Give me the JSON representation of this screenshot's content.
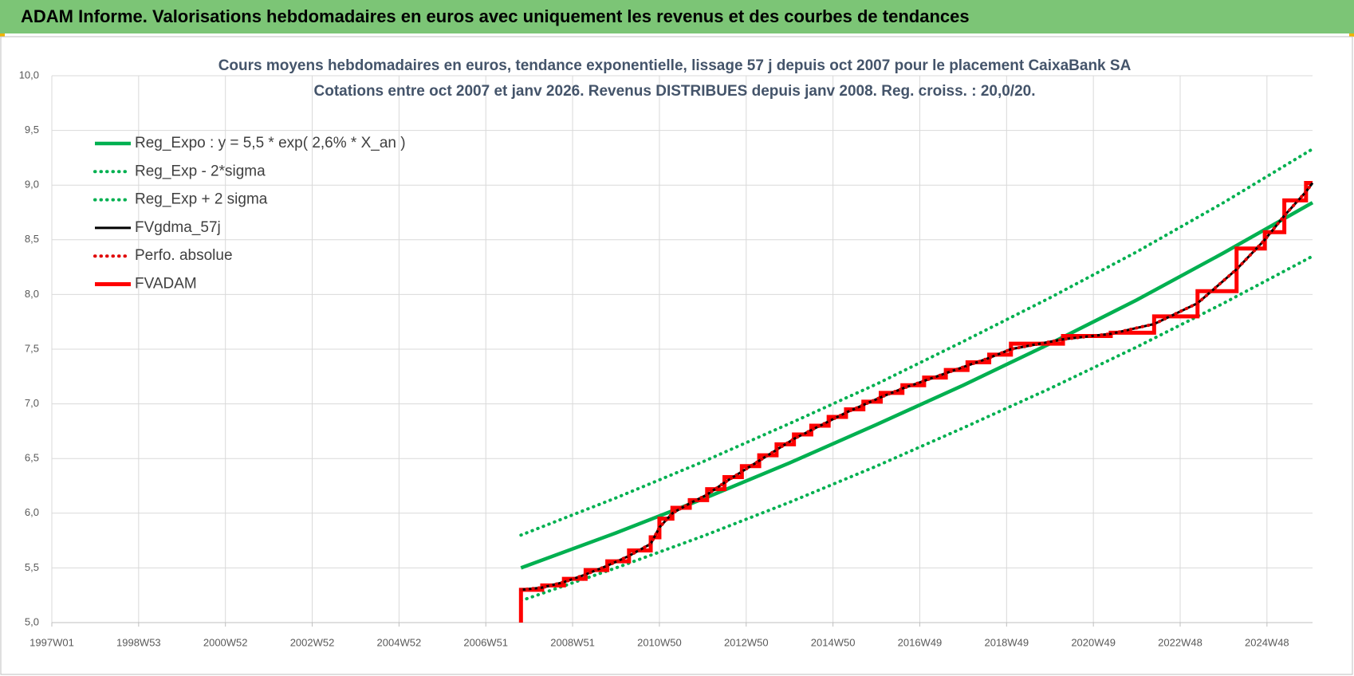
{
  "chart_data": {
    "type": "line",
    "title": "ADAM Informe. Valorisations hebdomadaires en euros avec uniquement les revenus et des courbes de tendances",
    "subtitle": [
      "Cours moyens hebdomadaires en euros, tendance exponentielle, lissage 57 j depuis oct 2007 pour le placement CaixaBank SA",
      "Cotations entre oct 2007 et janv 2026. Revenus DISTRIBUES depuis janv 2008. Reg. croiss. : 20,0/20."
    ],
    "xlim": [
      1997,
      2026.05
    ],
    "xticks": [
      {
        "value": 1997,
        "label": "1997W01"
      },
      {
        "value": 1999,
        "label": "1998W53"
      },
      {
        "value": 2001,
        "label": "2000W52"
      },
      {
        "value": 2003,
        "label": "2002W52"
      },
      {
        "value": 2005,
        "label": "2004W52"
      },
      {
        "value": 2007,
        "label": "2006W51"
      },
      {
        "value": 2009,
        "label": "2008W51"
      },
      {
        "value": 2011,
        "label": "2010W50"
      },
      {
        "value": 2013,
        "label": "2012W50"
      },
      {
        "value": 2015,
        "label": "2014W50"
      },
      {
        "value": 2017,
        "label": "2016W49"
      },
      {
        "value": 2019,
        "label": "2018W49"
      },
      {
        "value": 2021,
        "label": "2020W49"
      },
      {
        "value": 2023,
        "label": "2022W48"
      },
      {
        "value": 2025,
        "label": "2024W48"
      }
    ],
    "ylim": [
      5,
      10
    ],
    "yticks": [
      {
        "value": 5,
        "label": "5,0"
      },
      {
        "value": 5.5,
        "label": "5,5"
      },
      {
        "value": 6,
        "label": "6,0"
      },
      {
        "value": 6.5,
        "label": "6,5"
      },
      {
        "value": 7,
        "label": "7,0"
      },
      {
        "value": 7.5,
        "label": "7,5"
      },
      {
        "value": 8,
        "label": "8,0"
      },
      {
        "value": 8.5,
        "label": "8,5"
      },
      {
        "value": 9,
        "label": "9,0"
      },
      {
        "value": 9.5,
        "label": "9,5"
      },
      {
        "value": 10,
        "label": "10,0"
      }
    ],
    "grid": true,
    "legend": "upper-left",
    "series": [
      {
        "name": "Reg_Expo : y = 5,5 * exp( 2,6% *  X_an )",
        "color": "#00b050",
        "style": "solid",
        "x": [
          2007.81,
          2010,
          2012,
          2014,
          2016,
          2018,
          2020,
          2022,
          2024,
          2026.05
        ],
        "values": [
          5.5,
          5.82,
          6.13,
          6.46,
          6.81,
          7.17,
          7.55,
          7.95,
          8.38,
          8.84
        ]
      },
      {
        "name": "Reg_Exp - 2*sigma",
        "color": "#00b050",
        "style": "dotted",
        "x": [
          2007.81,
          2010,
          2012,
          2014,
          2016,
          2018,
          2020,
          2022,
          2024,
          2026.05
        ],
        "values": [
          5.2,
          5.5,
          5.79,
          6.1,
          6.43,
          6.78,
          7.14,
          7.52,
          7.92,
          8.35
        ]
      },
      {
        "name": "Reg_Exp + 2 sigma",
        "color": "#00b050",
        "style": "dotted",
        "x": [
          2007.81,
          2010,
          2012,
          2014,
          2016,
          2018,
          2020,
          2022,
          2024,
          2026.05
        ],
        "values": [
          5.8,
          6.14,
          6.47,
          6.82,
          7.18,
          7.57,
          7.97,
          8.39,
          8.84,
          9.33
        ]
      },
      {
        "name": "FVgdma_57j",
        "color": "#000000",
        "style": "solid",
        "x": [
          2007.81,
          2008.3,
          2008.8,
          2009.3,
          2009.8,
          2010.3,
          2010.8,
          2011.0,
          2011.3,
          2011.7,
          2012.1,
          2012.5,
          2012.9,
          2013.3,
          2013.7,
          2014.1,
          2014.5,
          2014.9,
          2015.3,
          2015.7,
          2016.1,
          2016.6,
          2017.1,
          2017.6,
          2018.1,
          2018.6,
          2019.1,
          2020.3,
          2021.4,
          2022.4,
          2023.4,
          2024.3,
          2024.95,
          2025.4,
          2025.9,
          2026.05
        ],
        "values": [
          5.3,
          5.32,
          5.37,
          5.44,
          5.52,
          5.61,
          5.72,
          5.87,
          6.0,
          6.09,
          6.17,
          6.28,
          6.38,
          6.48,
          6.58,
          6.68,
          6.76,
          6.84,
          6.92,
          6.99,
          7.06,
          7.14,
          7.21,
          7.28,
          7.35,
          7.42,
          7.5,
          7.59,
          7.64,
          7.73,
          7.92,
          8.23,
          8.5,
          8.72,
          8.94,
          9.02
        ]
      },
      {
        "name": "Perfo. absolue",
        "color": "#e00000",
        "style": "dotted",
        "x": [
          2007.81,
          2008.3,
          2008.8,
          2009.3,
          2009.8,
          2010.3,
          2010.8,
          2011.0,
          2011.3,
          2011.7,
          2012.1,
          2012.5,
          2012.9,
          2013.3,
          2013.7,
          2014.1,
          2014.5,
          2014.9,
          2015.3,
          2015.7,
          2016.1,
          2016.6,
          2017.1,
          2017.6,
          2018.1,
          2018.6,
          2019.1,
          2020.3,
          2021.4,
          2022.4,
          2023.4,
          2024.3,
          2024.95,
          2025.4,
          2025.9,
          2026.05
        ],
        "values": [
          5.3,
          5.32,
          5.37,
          5.44,
          5.52,
          5.61,
          5.72,
          5.87,
          6.0,
          6.09,
          6.17,
          6.28,
          6.38,
          6.48,
          6.58,
          6.68,
          6.76,
          6.84,
          6.92,
          6.99,
          7.06,
          7.14,
          7.21,
          7.28,
          7.35,
          7.42,
          7.5,
          7.59,
          7.64,
          7.73,
          7.92,
          8.23,
          8.5,
          8.72,
          8.94,
          9.02
        ]
      },
      {
        "name": "FVADAM",
        "color": "#ff0000",
        "style": "solid",
        "x": [
          2007.81,
          2007.81,
          2008.3,
          2008.3,
          2008.8,
          2008.8,
          2009.3,
          2009.3,
          2009.8,
          2009.8,
          2010.3,
          2010.3,
          2010.8,
          2010.8,
          2011.0,
          2011.0,
          2011.3,
          2011.3,
          2011.7,
          2011.7,
          2012.1,
          2012.1,
          2012.5,
          2012.5,
          2012.9,
          2012.9,
          2013.3,
          2013.3,
          2013.7,
          2013.7,
          2014.1,
          2014.1,
          2014.5,
          2014.5,
          2014.9,
          2014.9,
          2015.3,
          2015.3,
          2015.7,
          2015.7,
          2016.1,
          2016.1,
          2016.6,
          2016.6,
          2017.1,
          2017.1,
          2017.6,
          2017.6,
          2018.1,
          2018.1,
          2018.6,
          2018.6,
          2019.1,
          2019.1,
          2020.3,
          2020.3,
          2021.4,
          2021.4,
          2022.4,
          2022.4,
          2023.4,
          2023.4,
          2024.3,
          2024.3,
          2024.95,
          2024.95,
          2025.4,
          2025.4,
          2025.9,
          2025.9,
          2026.05
        ],
        "values": [
          5.0,
          5.3,
          5.3,
          5.34,
          5.34,
          5.4,
          5.4,
          5.48,
          5.48,
          5.56,
          5.56,
          5.66,
          5.66,
          5.78,
          5.78,
          5.95,
          5.95,
          6.05,
          6.05,
          6.12,
          6.12,
          6.22,
          6.22,
          6.33,
          6.33,
          6.43,
          6.43,
          6.53,
          6.53,
          6.63,
          6.63,
          6.72,
          6.72,
          6.8,
          6.8,
          6.88,
          6.88,
          6.95,
          6.95,
          7.02,
          7.02,
          7.1,
          7.1,
          7.17,
          7.17,
          7.24,
          7.24,
          7.31,
          7.31,
          7.38,
          7.38,
          7.45,
          7.45,
          7.55,
          7.55,
          7.62,
          7.62,
          7.65,
          7.65,
          7.8,
          7.8,
          8.03,
          8.03,
          8.42,
          8.42,
          8.57,
          8.57,
          8.86,
          8.86,
          9.02,
          9.02
        ]
      }
    ]
  }
}
